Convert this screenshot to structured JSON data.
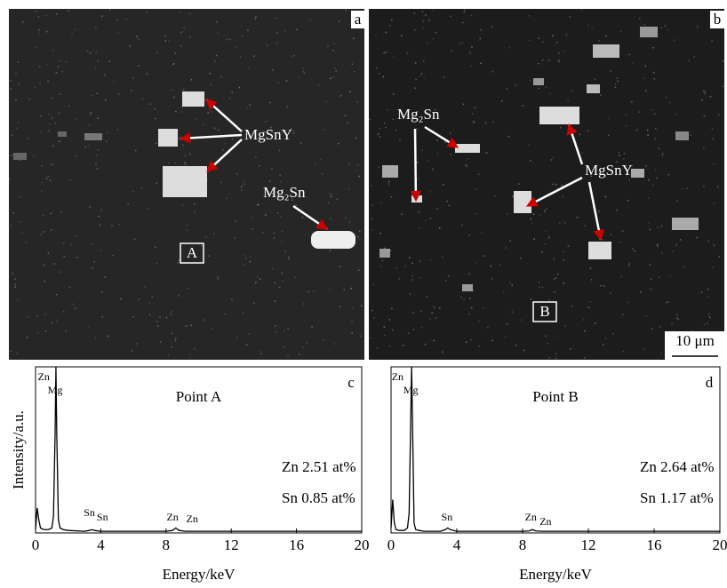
{
  "images": [
    {
      "panel_label": "a",
      "annotations": [
        {
          "text": "MgSnY"
        },
        {
          "text": "Mg₂Sn"
        }
      ],
      "marker": "A"
    },
    {
      "panel_label": "b",
      "annotations": [
        {
          "text": "Mg₂Sn"
        },
        {
          "text": "MgSnY"
        }
      ],
      "marker": "B",
      "scale_bar": "10 μm"
    }
  ],
  "chart_data": [
    {
      "type": "line",
      "panel_label": "c",
      "title": "Point A",
      "xlabel": "Energy/keV",
      "ylabel": "Intensity/a.u.",
      "x": [
        0,
        0.1,
        0.2,
        0.3,
        0.5,
        0.8,
        1.0,
        1.1,
        1.2,
        1.25,
        1.3,
        1.4,
        1.5,
        1.7,
        2,
        3,
        3.3,
        3.45,
        3.6,
        4,
        6,
        8,
        8.4,
        8.6,
        8.8,
        9.2,
        12,
        16,
        20
      ],
      "series": [
        {
          "name": "Point A",
          "color": "#000000",
          "values": [
            2,
            15,
            8,
            3,
            2,
            2,
            3,
            10,
            60,
            100,
            60,
            8,
            3,
            2,
            1.5,
            1,
            1.5,
            2,
            1.5,
            1,
            1,
            1,
            1.5,
            3,
            1.5,
            1,
            1,
            1,
            1
          ]
        }
      ],
      "xlim": [
        0,
        20
      ],
      "xticks": [
        0,
        4,
        8,
        12,
        16,
        20
      ],
      "ylim": [
        0,
        100
      ],
      "peak_labels": [
        {
          "text": "Zn",
          "energy": 0.5
        },
        {
          "text": "Mg",
          "energy": 1.2
        },
        {
          "text": "Sn",
          "energy": 3.3
        },
        {
          "text": "Sn",
          "energy": 4.1
        },
        {
          "text": "Zn",
          "energy": 8.4
        },
        {
          "text": "Zn",
          "energy": 9.6
        }
      ],
      "composition": [
        "Zn 2.51 at%",
        "Sn 0.85 at%"
      ]
    },
    {
      "type": "line",
      "panel_label": "d",
      "title": "Point B",
      "xlabel": "Energy/keV",
      "x": [
        0,
        0.1,
        0.2,
        0.3,
        0.5,
        0.8,
        1.0,
        1.1,
        1.2,
        1.25,
        1.3,
        1.4,
        1.5,
        1.7,
        2,
        3,
        3.3,
        3.45,
        3.6,
        4,
        6,
        8,
        8.4,
        8.6,
        8.8,
        9.2,
        12,
        16,
        20
      ],
      "series": [
        {
          "name": "Point B",
          "color": "#000000",
          "values": [
            3,
            20,
            6,
            2,
            1.5,
            1.5,
            3,
            12,
            70,
            100,
            70,
            6,
            2,
            1.5,
            1,
            1,
            2,
            3,
            2,
            1,
            1,
            1,
            1.2,
            2,
            1.2,
            1,
            1,
            1,
            1
          ]
        }
      ],
      "xlim": [
        0,
        20
      ],
      "xticks": [
        0,
        4,
        8,
        12,
        16,
        20
      ],
      "ylim": [
        0,
        100
      ],
      "peak_labels": [
        {
          "text": "Zn",
          "energy": 0.4
        },
        {
          "text": "Mg",
          "energy": 1.2
        },
        {
          "text": "Sn",
          "energy": 3.4
        },
        {
          "text": "Zn",
          "energy": 8.5
        },
        {
          "text": "Zn",
          "energy": 9.4
        }
      ],
      "composition": [
        "Zn 2.64 at%",
        "Sn 1.17 at%"
      ]
    }
  ]
}
